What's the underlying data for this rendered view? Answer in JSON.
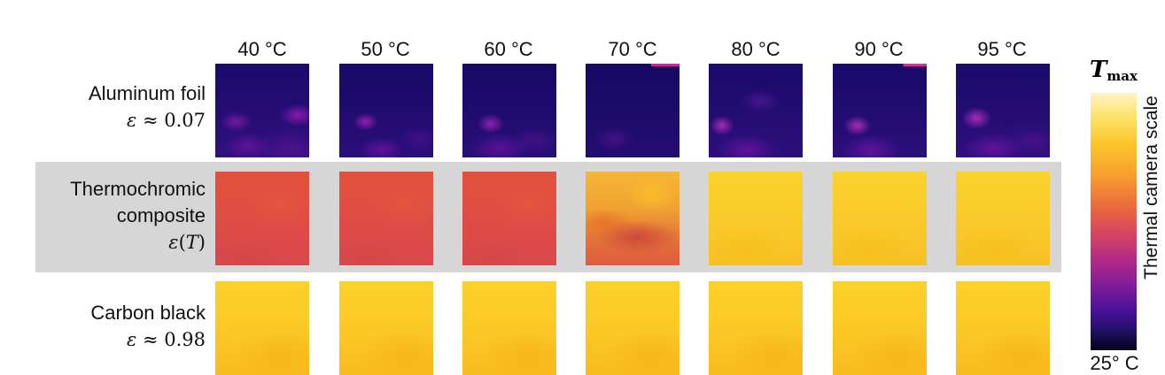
{
  "temperatures": [
    "40 °C",
    "50 °C",
    "60 °C",
    "70 °C",
    "80 °C",
    "90 °C",
    "95 °C"
  ],
  "rows": [
    {
      "label_lines": [
        "Aluminum foil"
      ],
      "emissivity_symbol": "ε",
      "emissivity_relation": "≈",
      "emissivity_value": "0.07"
    },
    {
      "label_lines": [
        "Thermochromic",
        "composite"
      ],
      "emissivity_symbol": "ε",
      "emissivity_arg": "T"
    },
    {
      "label_lines": [
        "Carbon black"
      ],
      "emissivity_symbol": "ε",
      "emissivity_relation": "≈",
      "emissivity_value": "0.98"
    }
  ],
  "colorbar": {
    "top_symbol": "T",
    "top_subscript": "max",
    "bottom_label": "25° C",
    "axis_title": "Thermal camera scale",
    "colors": [
      "#fff4c2",
      "#fbc52a",
      "#ec6b3d",
      "#b22a86",
      "#4a129a",
      "#060315"
    ]
  },
  "highlight_color": "#d6d6d6"
}
